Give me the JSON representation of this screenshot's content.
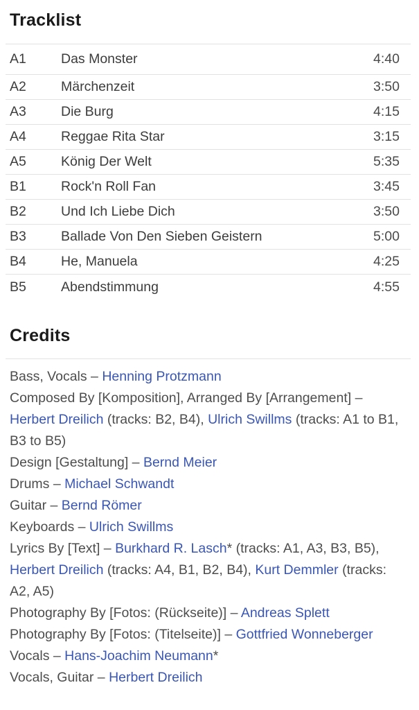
{
  "colors": {
    "heading": "#1a1a1a",
    "trackText": "#3c3c3c",
    "durationText": "#4a4a4a",
    "creditText": "#4d4d4d",
    "link": "#3a56b4",
    "divider": "#e2e2e2",
    "background": "#ffffff"
  },
  "tracklist": {
    "title": "Tracklist",
    "tracks": [
      {
        "position": "A1",
        "title": "Das Monster",
        "duration": "4:40"
      },
      {
        "position": "A2",
        "title": "Märchenzeit",
        "duration": "3:50"
      },
      {
        "position": "A3",
        "title": "Die Burg",
        "duration": "4:15"
      },
      {
        "position": "A4",
        "title": "Reggae Rita Star",
        "duration": "3:15"
      },
      {
        "position": "A5",
        "title": "König Der Welt",
        "duration": "5:35"
      },
      {
        "position": "B1",
        "title": "Rock'n Roll Fan",
        "duration": "3:45"
      },
      {
        "position": "B2",
        "title": "Und Ich Liebe Dich",
        "duration": "3:50"
      },
      {
        "position": "B3",
        "title": "Ballade Von Den Sieben Geistern",
        "duration": "5:00"
      },
      {
        "position": "B4",
        "title": "He, Manuela",
        "duration": "4:25"
      },
      {
        "position": "B5",
        "title": "Abendstimmung",
        "duration": "4:55"
      }
    ]
  },
  "credits": {
    "title": "Credits",
    "entries": [
      {
        "segments": [
          {
            "type": "text",
            "value": "Bass, Vocals – "
          },
          {
            "type": "link",
            "value": "Henning Protzmann"
          }
        ]
      },
      {
        "segments": [
          {
            "type": "text",
            "value": "Composed By [Komposition], Arranged By [Arrangement] – "
          },
          {
            "type": "link",
            "value": "Herbert Dreilich"
          },
          {
            "type": "text",
            "value": " (tracks: B2, B4), "
          },
          {
            "type": "link",
            "value": "Ulrich Swillms"
          },
          {
            "type": "text",
            "value": " (tracks: A1 to B1, B3 to B5)"
          }
        ]
      },
      {
        "segments": [
          {
            "type": "text",
            "value": "Design [Gestaltung] – "
          },
          {
            "type": "link",
            "value": "Bernd Meier"
          }
        ]
      },
      {
        "segments": [
          {
            "type": "text",
            "value": "Drums – "
          },
          {
            "type": "link",
            "value": "Michael Schwandt"
          }
        ]
      },
      {
        "segments": [
          {
            "type": "text",
            "value": "Guitar – "
          },
          {
            "type": "link",
            "value": "Bernd Römer"
          }
        ]
      },
      {
        "segments": [
          {
            "type": "text",
            "value": "Keyboards – "
          },
          {
            "type": "link",
            "value": "Ulrich Swillms"
          }
        ]
      },
      {
        "segments": [
          {
            "type": "text",
            "value": "Lyrics By [Text] – "
          },
          {
            "type": "link",
            "value": "Burkhard R. Lasch"
          },
          {
            "type": "text",
            "value": "* (tracks: A1, A3, B3, B5), "
          },
          {
            "type": "link",
            "value": "Herbert Dreilich"
          },
          {
            "type": "text",
            "value": " (tracks: A4, B1, B2, B4), "
          },
          {
            "type": "link",
            "value": "Kurt Demmler"
          },
          {
            "type": "text",
            "value": " (tracks: A2, A5)"
          }
        ]
      },
      {
        "segments": [
          {
            "type": "text",
            "value": "Photography By [Fotos: (Rückseite)] – "
          },
          {
            "type": "link",
            "value": "Andreas Splett"
          }
        ]
      },
      {
        "segments": [
          {
            "type": "text",
            "value": "Photography By [Fotos: (Titelseite)] – "
          },
          {
            "type": "link",
            "value": "Gottfried Wonneberger"
          }
        ]
      },
      {
        "segments": [
          {
            "type": "text",
            "value": "Vocals – "
          },
          {
            "type": "link",
            "value": "Hans-Joachim Neumann"
          },
          {
            "type": "text",
            "value": "*"
          }
        ]
      },
      {
        "segments": [
          {
            "type": "text",
            "value": "Vocals, Guitar – "
          },
          {
            "type": "link",
            "value": "Herbert Dreilich"
          }
        ]
      }
    ]
  }
}
